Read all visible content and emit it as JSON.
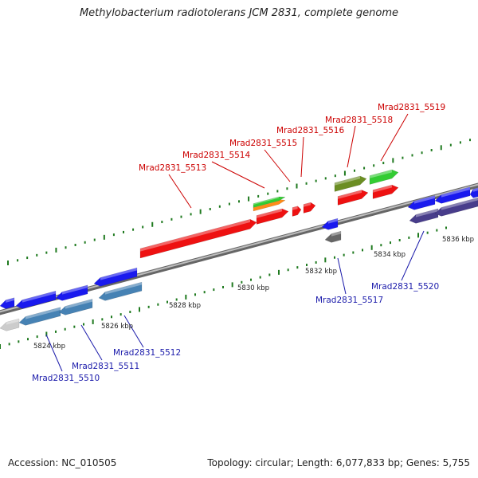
{
  "header": {
    "title": "Methylobacterium radiotolerans JCM 2831, complete genome"
  },
  "footer": {
    "accession": "Accession: NC_010505",
    "topology": "Topology: circular; Length: 6,077,833 bp; Genes: 5,755"
  },
  "colors": {
    "forward_strand": "#ee1111",
    "reverse_strand": "#1a1aee",
    "forward_label": "#cc0000",
    "reverse_label": "#1a1aaa",
    "backbone": "#8a8a8a",
    "tick": "#1f7a1f"
  },
  "scale": {
    "ticks": [
      {
        "label": "5824 kbp"
      },
      {
        "label": "5826 kbp"
      },
      {
        "label": "5828 kbp"
      },
      {
        "label": "5830 kbp"
      },
      {
        "label": "5832 kbp"
      },
      {
        "label": "5834 kbp"
      },
      {
        "label": "5836 kbp"
      }
    ]
  },
  "genes": {
    "forward": [
      {
        "name": "Mrad2831_5513"
      },
      {
        "name": "Mrad2831_5514"
      },
      {
        "name": "Mrad2831_5515"
      },
      {
        "name": "Mrad2831_5516"
      },
      {
        "name": "Mrad2831_5518"
      },
      {
        "name": "Mrad2831_5519"
      }
    ],
    "reverse": [
      {
        "name": "Mrad2831_5510"
      },
      {
        "name": "Mrad2831_5511"
      },
      {
        "name": "Mrad2831_5512"
      },
      {
        "name": "Mrad2831_5517"
      },
      {
        "name": "Mrad2831_5520"
      }
    ]
  }
}
